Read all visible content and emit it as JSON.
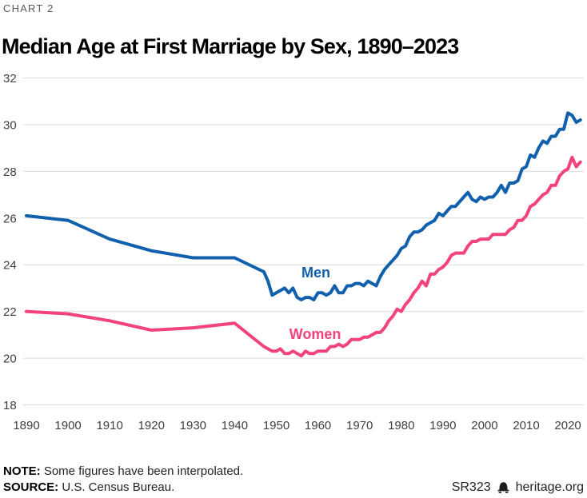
{
  "kicker": "CHART 2",
  "title": "Median Age at First Marriage by Sex, 1890–2023",
  "footer": {
    "note_label": "NOTE:",
    "note_text": " Some figures have been interpolated.",
    "source_label": "SOURCE:",
    "source_text": " U.S. Census Bureau.",
    "report_id": "SR323",
    "site": "heritage.org",
    "bell_icon": "heritage-liberty-bell"
  },
  "colors": {
    "men_line": "#1160ad",
    "women_line": "#f2437e",
    "gridline": "#dcdcdc",
    "tick_text": "#414042",
    "title_text": "#000000",
    "kicker_text": "#58595b",
    "footer_text": "#231f20"
  },
  "chart_data": {
    "type": "line",
    "title": "Median Age at First Marriage by Sex, 1890–2023",
    "xlabel": "",
    "ylabel": "",
    "xlim": [
      1890,
      2023
    ],
    "ylim": [
      18,
      32
    ],
    "grid": "horizontal",
    "legend_position": "inline-labels",
    "x_ticks": [
      1890,
      1900,
      1910,
      1920,
      1930,
      1940,
      1950,
      1960,
      1970,
      1980,
      1990,
      2000,
      2010,
      2020
    ],
    "y_ticks": [
      18,
      20,
      22,
      24,
      26,
      28,
      30,
      32
    ],
    "series": [
      {
        "name": "Men",
        "color": "#1160ad",
        "points": [
          [
            1890,
            26.1
          ],
          [
            1900,
            25.9
          ],
          [
            1910,
            25.1
          ],
          [
            1920,
            24.6
          ],
          [
            1930,
            24.3
          ],
          [
            1940,
            24.3
          ],
          [
            1947,
            23.7
          ],
          [
            1948,
            23.3
          ],
          [
            1949,
            22.7
          ],
          [
            1950,
            22.8
          ],
          [
            1951,
            22.9
          ],
          [
            1952,
            23.0
          ],
          [
            1953,
            22.8
          ],
          [
            1954,
            23.0
          ],
          [
            1955,
            22.6
          ],
          [
            1956,
            22.5
          ],
          [
            1957,
            22.6
          ],
          [
            1958,
            22.6
          ],
          [
            1959,
            22.5
          ],
          [
            1960,
            22.8
          ],
          [
            1961,
            22.8
          ],
          [
            1962,
            22.7
          ],
          [
            1963,
            22.8
          ],
          [
            1964,
            23.1
          ],
          [
            1965,
            22.8
          ],
          [
            1966,
            22.8
          ],
          [
            1967,
            23.1
          ],
          [
            1968,
            23.1
          ],
          [
            1969,
            23.2
          ],
          [
            1970,
            23.2
          ],
          [
            1971,
            23.1
          ],
          [
            1972,
            23.3
          ],
          [
            1973,
            23.2
          ],
          [
            1974,
            23.1
          ],
          [
            1975,
            23.5
          ],
          [
            1976,
            23.8
          ],
          [
            1977,
            24.0
          ],
          [
            1978,
            24.2
          ],
          [
            1979,
            24.4
          ],
          [
            1980,
            24.7
          ],
          [
            1981,
            24.8
          ],
          [
            1982,
            25.2
          ],
          [
            1983,
            25.4
          ],
          [
            1984,
            25.4
          ],
          [
            1985,
            25.5
          ],
          [
            1986,
            25.7
          ],
          [
            1987,
            25.8
          ],
          [
            1988,
            25.9
          ],
          [
            1989,
            26.2
          ],
          [
            1990,
            26.1
          ],
          [
            1991,
            26.3
          ],
          [
            1992,
            26.5
          ],
          [
            1993,
            26.5
          ],
          [
            1994,
            26.7
          ],
          [
            1995,
            26.9
          ],
          [
            1996,
            27.1
          ],
          [
            1997,
            26.8
          ],
          [
            1998,
            26.7
          ],
          [
            1999,
            26.9
          ],
          [
            2000,
            26.8
          ],
          [
            2001,
            26.9
          ],
          [
            2002,
            26.9
          ],
          [
            2003,
            27.1
          ],
          [
            2004,
            27.4
          ],
          [
            2005,
            27.1
          ],
          [
            2006,
            27.5
          ],
          [
            2007,
            27.5
          ],
          [
            2008,
            27.6
          ],
          [
            2009,
            28.1
          ],
          [
            2010,
            28.2
          ],
          [
            2011,
            28.7
          ],
          [
            2012,
            28.6
          ],
          [
            2013,
            29.0
          ],
          [
            2014,
            29.3
          ],
          [
            2015,
            29.2
          ],
          [
            2016,
            29.5
          ],
          [
            2017,
            29.5
          ],
          [
            2018,
            29.8
          ],
          [
            2019,
            29.8
          ],
          [
            2020,
            30.5
          ],
          [
            2021,
            30.4
          ],
          [
            2022,
            30.1
          ],
          [
            2023,
            30.2
          ]
        ]
      },
      {
        "name": "Women",
        "color": "#f2437e",
        "points": [
          [
            1890,
            22.0
          ],
          [
            1900,
            21.9
          ],
          [
            1910,
            21.6
          ],
          [
            1920,
            21.2
          ],
          [
            1930,
            21.3
          ],
          [
            1940,
            21.5
          ],
          [
            1947,
            20.5
          ],
          [
            1948,
            20.4
          ],
          [
            1949,
            20.3
          ],
          [
            1950,
            20.3
          ],
          [
            1951,
            20.4
          ],
          [
            1952,
            20.2
          ],
          [
            1953,
            20.2
          ],
          [
            1954,
            20.3
          ],
          [
            1955,
            20.2
          ],
          [
            1956,
            20.1
          ],
          [
            1957,
            20.3
          ],
          [
            1958,
            20.2
          ],
          [
            1959,
            20.2
          ],
          [
            1960,
            20.3
          ],
          [
            1961,
            20.3
          ],
          [
            1962,
            20.3
          ],
          [
            1963,
            20.5
          ],
          [
            1964,
            20.5
          ],
          [
            1965,
            20.6
          ],
          [
            1966,
            20.5
          ],
          [
            1967,
            20.6
          ],
          [
            1968,
            20.8
          ],
          [
            1969,
            20.8
          ],
          [
            1970,
            20.8
          ],
          [
            1971,
            20.9
          ],
          [
            1972,
            20.9
          ],
          [
            1973,
            21.0
          ],
          [
            1974,
            21.1
          ],
          [
            1975,
            21.1
          ],
          [
            1976,
            21.3
          ],
          [
            1977,
            21.6
          ],
          [
            1978,
            21.8
          ],
          [
            1979,
            22.1
          ],
          [
            1980,
            22.0
          ],
          [
            1981,
            22.3
          ],
          [
            1982,
            22.5
          ],
          [
            1983,
            22.8
          ],
          [
            1984,
            23.0
          ],
          [
            1985,
            23.3
          ],
          [
            1986,
            23.1
          ],
          [
            1987,
            23.6
          ],
          [
            1988,
            23.6
          ],
          [
            1989,
            23.8
          ],
          [
            1990,
            23.9
          ],
          [
            1991,
            24.1
          ],
          [
            1992,
            24.4
          ],
          [
            1993,
            24.5
          ],
          [
            1994,
            24.5
          ],
          [
            1995,
            24.5
          ],
          [
            1996,
            24.8
          ],
          [
            1997,
            25.0
          ],
          [
            1998,
            25.0
          ],
          [
            1999,
            25.1
          ],
          [
            2000,
            25.1
          ],
          [
            2001,
            25.1
          ],
          [
            2002,
            25.3
          ],
          [
            2003,
            25.3
          ],
          [
            2004,
            25.3
          ],
          [
            2005,
            25.3
          ],
          [
            2006,
            25.5
          ],
          [
            2007,
            25.6
          ],
          [
            2008,
            25.9
          ],
          [
            2009,
            25.9
          ],
          [
            2010,
            26.1
          ],
          [
            2011,
            26.5
          ],
          [
            2012,
            26.6
          ],
          [
            2013,
            26.8
          ],
          [
            2014,
            27.0
          ],
          [
            2015,
            27.1
          ],
          [
            2016,
            27.4
          ],
          [
            2017,
            27.4
          ],
          [
            2018,
            27.8
          ],
          [
            2019,
            28.0
          ],
          [
            2020,
            28.1
          ],
          [
            2021,
            28.6
          ],
          [
            2022,
            28.2
          ],
          [
            2023,
            28.4
          ]
        ]
      }
    ]
  }
}
